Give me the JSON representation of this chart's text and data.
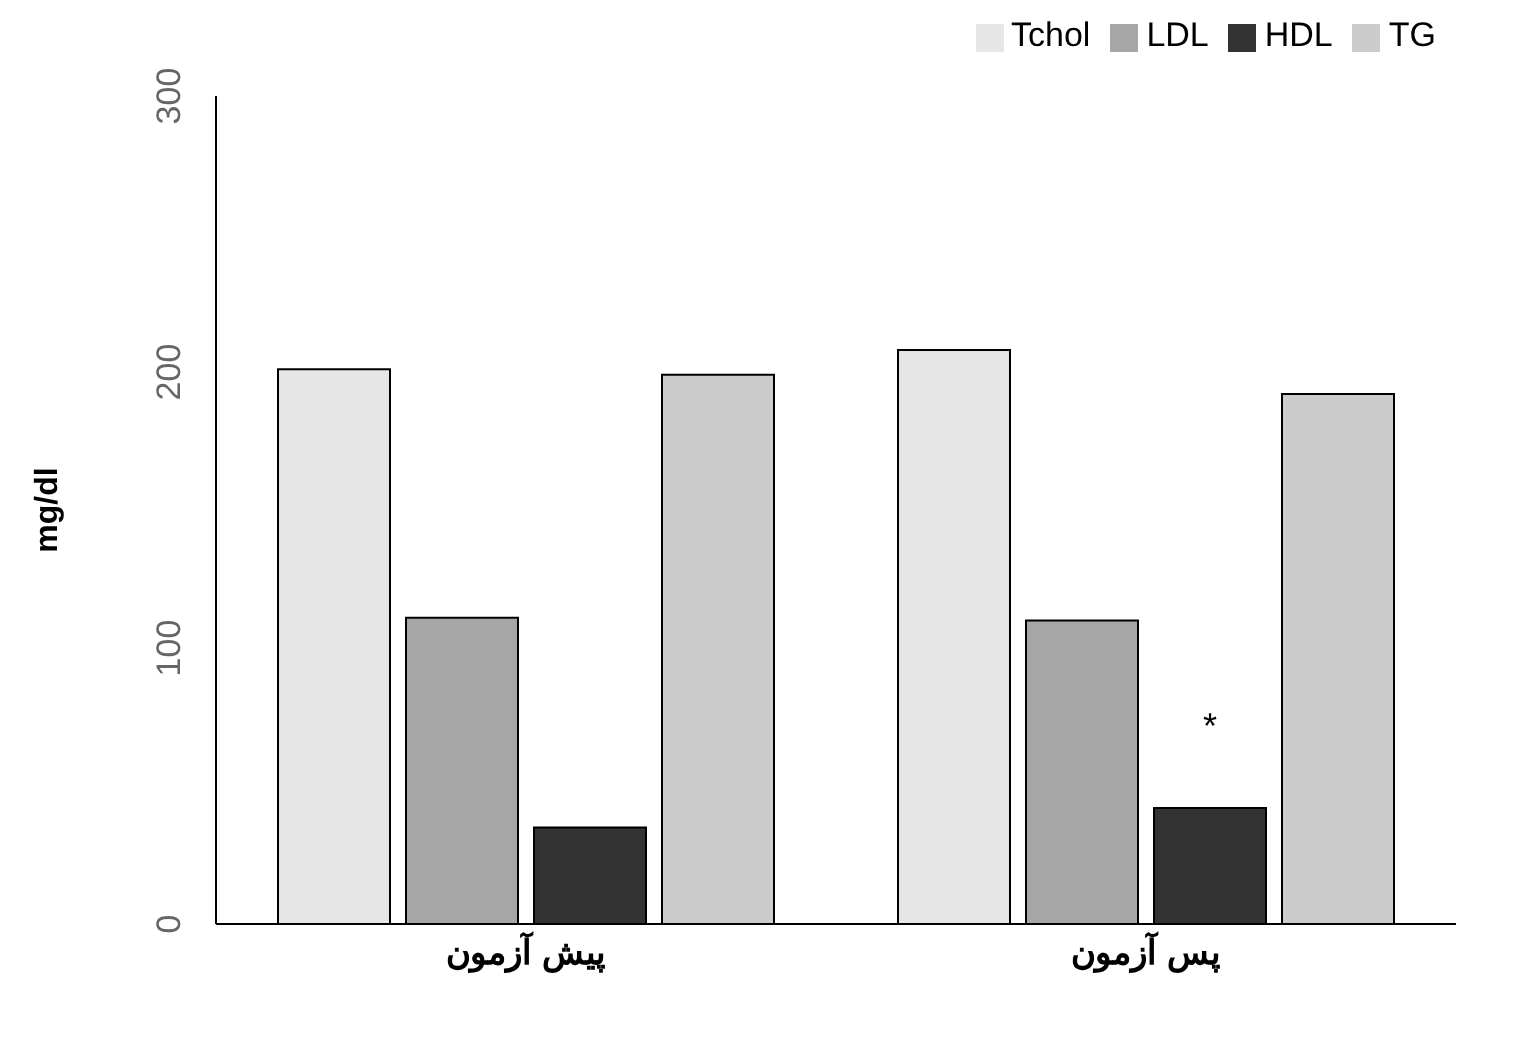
{
  "chart_data": {
    "type": "bar",
    "ylabel": "mg/dl",
    "categories": [
      "پیش آزمون",
      "پس آزمون"
    ],
    "series": [
      {
        "name": "Tchol",
        "color": "#e6e6e6",
        "values": [
          201,
          208
        ]
      },
      {
        "name": "LDL",
        "color": "#a6a6a6",
        "values": [
          111,
          110
        ]
      },
      {
        "name": "HDL",
        "color": "#333333",
        "values": [
          35,
          42
        ]
      },
      {
        "name": "TG",
        "color": "#cccccc",
        "values": [
          199,
          192
        ]
      }
    ],
    "ylim": [
      0,
      300
    ],
    "yticks": [
      0,
      100,
      200,
      300
    ],
    "grid": false,
    "legend": "top right",
    "annotations": [
      {
        "text": "*",
        "x": "پس آزمون",
        "y": 71
      }
    ]
  }
}
